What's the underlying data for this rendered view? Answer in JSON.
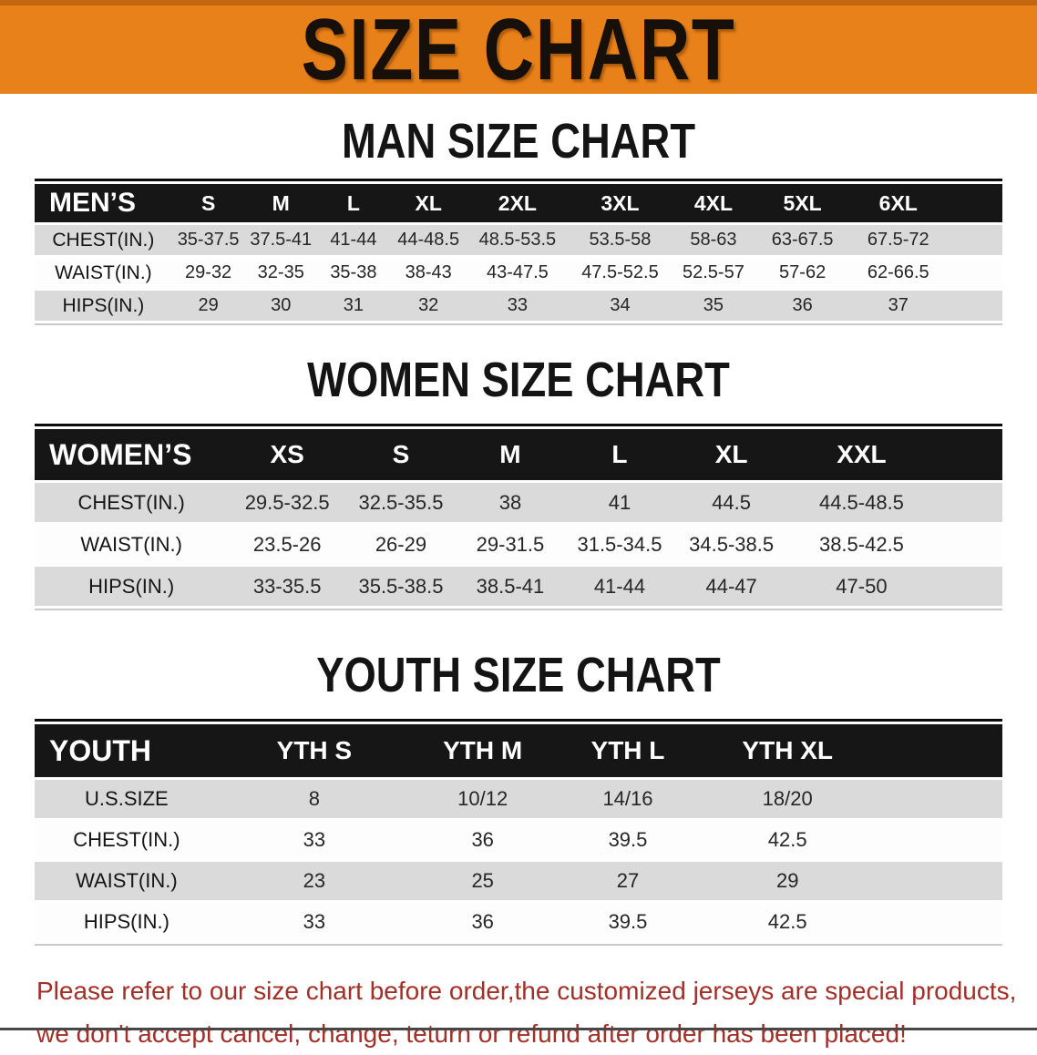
{
  "banner": {
    "title": "SIZE CHART"
  },
  "colors": {
    "banner_orange": "#E8811A",
    "header_bar_black": "#161616",
    "row_gray": "#DADADA",
    "note_red": "#A13028"
  },
  "sections": {
    "men": {
      "heading": "MAN SIZE CHART",
      "group_label": "MEN’S",
      "sizes": [
        "S",
        "M",
        "L",
        "XL",
        "2XL",
        "3XL",
        "4XL",
        "5XL",
        "6XL"
      ],
      "rows": [
        {
          "label": "CHEST(IN.)",
          "values": [
            "35-37.5",
            "37.5-41",
            "41-44",
            "44-48.5",
            "48.5-53.5",
            "53.5-58",
            "58-63",
            "63-67.5",
            "67.5-72"
          ]
        },
        {
          "label": "WAIST(IN.)",
          "values": [
            "29-32",
            "32-35",
            "35-38",
            "38-43",
            "43-47.5",
            "47.5-52.5",
            "52.5-57",
            "57-62",
            "62-66.5"
          ]
        },
        {
          "label": "HIPS(IN.)",
          "values": [
            "29",
            "30",
            "31",
            "32",
            "33",
            "34",
            "35",
            "36",
            "37"
          ]
        }
      ]
    },
    "women": {
      "heading": "WOMEN SIZE CHART",
      "group_label": "WOMEN’S",
      "sizes": [
        "XS",
        "S",
        "M",
        "L",
        "XL",
        "XXL"
      ],
      "rows": [
        {
          "label": "CHEST(IN.)",
          "values": [
            "29.5-32.5",
            "32.5-35.5",
            "38",
            "41",
            "44.5",
            "44.5-48.5"
          ]
        },
        {
          "label": "WAIST(IN.)",
          "values": [
            "23.5-26",
            "26-29",
            "29-31.5",
            "31.5-34.5",
            "34.5-38.5",
            "38.5-42.5"
          ]
        },
        {
          "label": "HIPS(IN.)",
          "values": [
            "33-35.5",
            "35.5-38.5",
            "38.5-41",
            "41-44",
            "44-47",
            "47-50"
          ]
        }
      ]
    },
    "youth": {
      "heading": "YOUTH SIZE CHART",
      "group_label": "YOUTH",
      "sizes": [
        "YTH S",
        "YTH M",
        "YTH L",
        "YTH XL"
      ],
      "rows": [
        {
          "label": "U.S.SIZE",
          "values": [
            "8",
            "10/12",
            "14/16",
            "18/20"
          ]
        },
        {
          "label": "CHEST(IN.)",
          "values": [
            "33",
            "36",
            "39.5",
            "42.5"
          ]
        },
        {
          "label": "WAIST(IN.)",
          "values": [
            "23",
            "25",
            "27",
            "29"
          ]
        },
        {
          "label": "HIPS(IN.)",
          "values": [
            "33",
            "36",
            "39.5",
            "42.5"
          ]
        }
      ]
    }
  },
  "footer": {
    "line1": "Please refer to our size chart before order,the customized jerseys are special products,",
    "line2": "we don't accept cancel, change, teturn or refund after order has been placed!"
  }
}
